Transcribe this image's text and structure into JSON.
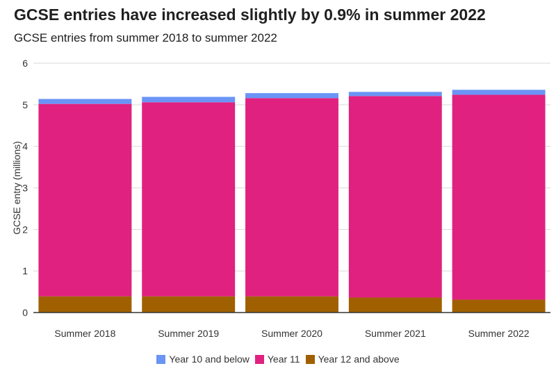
{
  "title": "GCSE entries have increased slightly by 0.9% in summer 2022",
  "subtitle": "GCSE entries from summer 2018 to summer 2022",
  "chart_data": {
    "type": "bar",
    "stacked": true,
    "categories": [
      "Summer 2018",
      "Summer 2019",
      "Summer 2020",
      "Summer 2021",
      "Summer 2022"
    ],
    "series": [
      {
        "name": "Year 12 and above",
        "color": "#a06000",
        "values": [
          0.39,
          0.39,
          0.39,
          0.36,
          0.31
        ]
      },
      {
        "name": "Year 11",
        "color": "#e0217f",
        "values": [
          4.63,
          4.67,
          4.77,
          4.85,
          4.93
        ]
      },
      {
        "name": "Year 10 and below",
        "color": "#6a94f5",
        "values": [
          0.12,
          0.13,
          0.12,
          0.1,
          0.12
        ]
      }
    ],
    "ylabel": "GCSE entry (millions)",
    "ylim": [
      0,
      6
    ],
    "yticks": [
      0,
      1,
      2,
      3,
      4,
      5,
      6
    ],
    "grid": true,
    "legend": "bottom"
  },
  "legend": [
    {
      "label": "Year 10 and below",
      "color": "#6a94f5"
    },
    {
      "label": "Year 11",
      "color": "#e0217f"
    },
    {
      "label": "Year 12 and above",
      "color": "#a06000"
    }
  ]
}
